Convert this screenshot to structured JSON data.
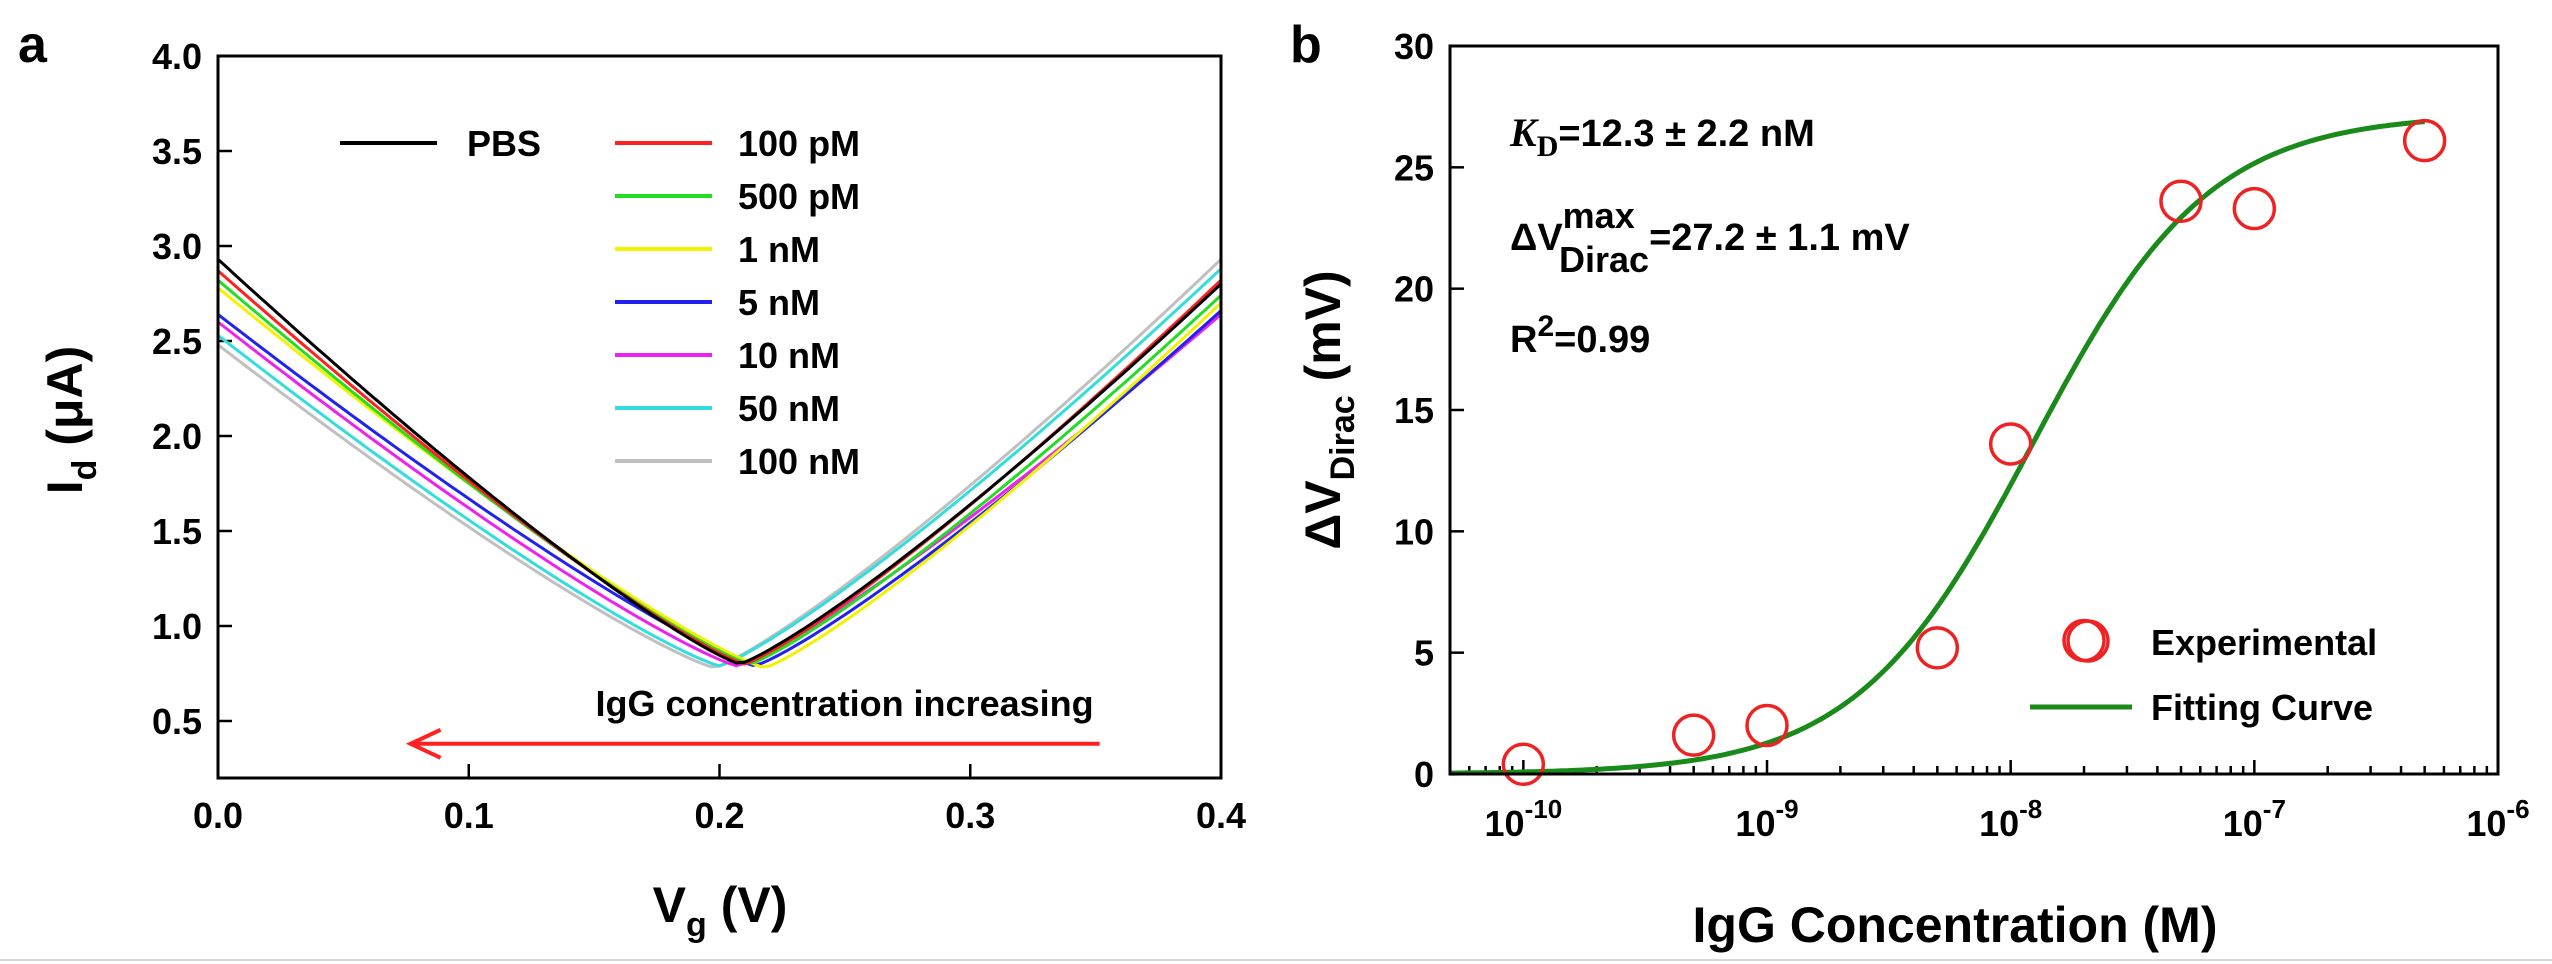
{
  "chart_data": [
    {
      "panel": "a",
      "type": "line",
      "title": "",
      "xlabel": "V",
      "xlabel_sub": "g",
      "xlabel_unit": " (V)",
      "ylabel": "I",
      "ylabel_sub": "d",
      "ylabel_unit": " (μA)",
      "xlim": [
        0.0,
        0.4
      ],
      "ylim": [
        0.2,
        4.0
      ],
      "xticks": [
        0.0,
        0.1,
        0.2,
        0.3,
        0.4
      ],
      "xtick_labels": [
        "0.0",
        "0.1",
        "0.2",
        "0.3",
        "0.4"
      ],
      "yticks": [
        0.5,
        1.0,
        1.5,
        2.0,
        2.5,
        3.0,
        3.5,
        4.0
      ],
      "ytick_labels": [
        "0.5",
        "1.0",
        "1.5",
        "2.0",
        "2.5",
        "3.0",
        "3.5",
        "4.0"
      ],
      "legend_position": "top-right",
      "series": [
        {
          "name": "PBS",
          "color": "#000000",
          "x": [
            0.0,
            0.208,
            0.4
          ],
          "y": [
            2.93,
            0.8,
            2.8
          ]
        },
        {
          "name": "100 pM",
          "color": "#ff2020",
          "x": [
            0.0,
            0.21,
            0.4
          ],
          "y": [
            2.87,
            0.8,
            2.82
          ]
        },
        {
          "name": "500 pM",
          "color": "#22dd22",
          "x": [
            0.0,
            0.212,
            0.4
          ],
          "y": [
            2.82,
            0.8,
            2.74
          ]
        },
        {
          "name": "1 nM",
          "color": "#f2f200",
          "x": [
            0.0,
            0.218,
            0.4
          ],
          "y": [
            2.78,
            0.78,
            2.7
          ]
        },
        {
          "name": "5 nM",
          "color": "#2222ee",
          "x": [
            0.0,
            0.214,
            0.4
          ],
          "y": [
            2.64,
            0.79,
            2.66
          ]
        },
        {
          "name": "10 nM",
          "color": "#ee22ee",
          "x": [
            0.0,
            0.207,
            0.4
          ],
          "y": [
            2.6,
            0.79,
            2.64
          ]
        },
        {
          "name": "50 nM",
          "color": "#33dddd",
          "x": [
            0.0,
            0.2,
            0.4
          ],
          "y": [
            2.53,
            0.79,
            2.88
          ]
        },
        {
          "name": "100 nM",
          "color": "#c0c0c0",
          "x": [
            0.0,
            0.198,
            0.4
          ],
          "y": [
            2.48,
            0.78,
            2.93
          ]
        }
      ],
      "annotation": {
        "text": "IgG concentration increasing",
        "arrow_from": [
          0.35,
          0.38
        ],
        "arrow_to": [
          0.08,
          0.38
        ],
        "color": "#ff2020"
      }
    },
    {
      "panel": "b",
      "type": "scatter",
      "title": "",
      "xlabel": "IgG Concentration (M)",
      "ylabel": "ΔV",
      "ylabel_sub": "Dirac",
      "ylabel_unit": " (mV)",
      "xscale": "log",
      "xlim": [
        5e-11,
        1e-06
      ],
      "ylim": [
        0,
        30
      ],
      "xticks": [
        1e-10,
        1e-09,
        1e-08,
        1e-07,
        1e-06
      ],
      "xtick_base": "10",
      "xtick_exponents": [
        "-10",
        "-9",
        "-8",
        "-7",
        "-6"
      ],
      "yticks": [
        0,
        5,
        10,
        15,
        20,
        25,
        30
      ],
      "ytick_labels": [
        "0",
        "5",
        "10",
        "15",
        "20",
        "25",
        "30"
      ],
      "legend_position": "bottom-right",
      "series": [
        {
          "name": "Experimental",
          "kind": "points",
          "color": "#ee2222",
          "x": [
            1e-10,
            5e-10,
            1e-09,
            5e-09,
            1e-08,
            2e-08,
            5e-08,
            1e-07,
            5e-07
          ],
          "y": [
            0.4,
            1.6,
            2.0,
            5.2,
            13.6,
            5.5,
            23.6,
            23.3,
            26.1
          ]
        },
        {
          "name": "Fitting Curve",
          "kind": "line",
          "color": "#1a8a1a",
          "model": "hill",
          "Vmax": 27.2,
          "KD": 1.23e-08,
          "n": 1.2
        }
      ],
      "annotations": {
        "kd_symbol": "K",
        "kd_sub": "D",
        "kd_value": "=12.3 ± 2.2 nM",
        "dv_prefix": "ΔV",
        "dv_sup": "max",
        "dv_sub": "Dirac",
        "dv_value": "=27.2 ± 1.1 mV",
        "r2_prefix": "R",
        "r2_sup": "2",
        "r2_value": "=0.99"
      }
    }
  ]
}
